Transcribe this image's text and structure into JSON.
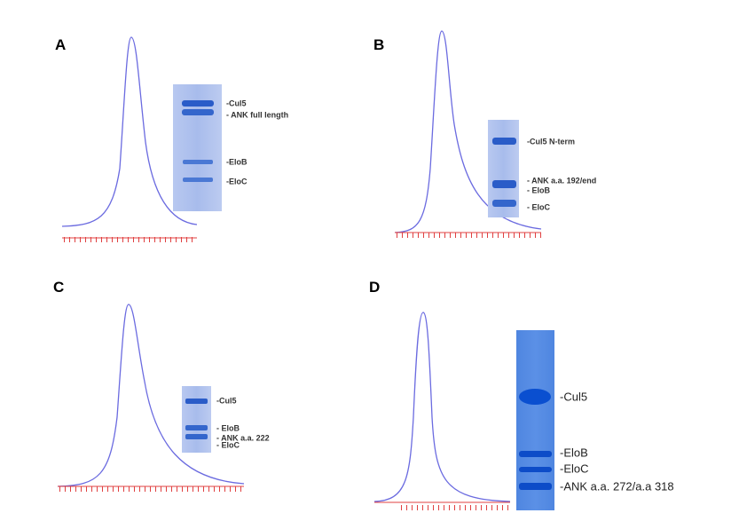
{
  "panels": [
    {
      "label": "A",
      "bands": [
        "-Cul5",
        "- ANK full length",
        "-EloB",
        "-EloC"
      ]
    },
    {
      "label": "B",
      "bands": [
        "-Cul5 N-term",
        "- ANK a.a. 192/end",
        "- EloB",
        "- EloC"
      ]
    },
    {
      "label": "C",
      "bands": [
        "-Cul5",
        "- EloB",
        "- ANK a.a. 222",
        "- EloC"
      ]
    },
    {
      "label": "D",
      "bands": [
        "-Cul5",
        "-EloB",
        "-EloC",
        "-ANK a.a. 272/a.a 318"
      ]
    }
  ]
}
